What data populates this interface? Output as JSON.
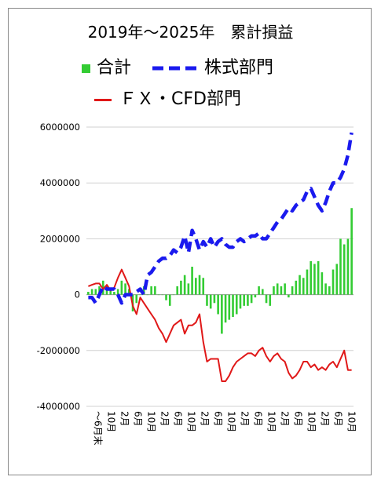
{
  "chart_data": {
    "type": "bar",
    "title": "2019年～2025年　累計損益",
    "ylim": [
      -4000000,
      6000000
    ],
    "yticks": [
      "6000000",
      "4000000",
      "2000000",
      "0",
      "-2000000",
      "-4000000"
    ],
    "ytick_values": [
      6000000,
      4000000,
      2000000,
      0,
      -2000000,
      -4000000
    ],
    "grid": "horizontal",
    "legend_position": "top",
    "x_tick_labels": [
      "～6月末",
      "10月",
      "2月",
      "6月",
      "10月",
      "2月",
      "6月",
      "10月",
      "2月",
      "6月",
      "10月",
      "2月",
      "6月",
      "10月",
      "2月",
      "6月",
      "10月",
      "2月",
      "6月",
      "10月"
    ],
    "series": [
      {
        "name": "合計",
        "kind": "bar",
        "color": "#33cc33",
        "values": [
          100000,
          200000,
          200000,
          300000,
          500000,
          300000,
          200000,
          100000,
          200000,
          500000,
          400000,
          200000,
          -600000,
          -300000,
          0,
          300000,
          0,
          300000,
          300000,
          0,
          0,
          -200000,
          -400000,
          0,
          300000,
          500000,
          700000,
          400000,
          1000000,
          600000,
          700000,
          600000,
          -400000,
          -500000,
          -300000,
          -700000,
          -1400000,
          -1000000,
          -900000,
          -800000,
          -700000,
          -500000,
          -400000,
          -400000,
          -300000,
          -100000,
          300000,
          200000,
          -300000,
          -400000,
          300000,
          400000,
          300000,
          400000,
          -100000,
          300000,
          500000,
          700000,
          600000,
          900000,
          1200000,
          1100000,
          1200000,
          800000,
          400000,
          300000,
          900000,
          1100000,
          2000000,
          1800000,
          2000000,
          3100000
        ]
      },
      {
        "name": "株式部門",
        "kind": "dashed-line",
        "color": "#1a1aee",
        "values": [
          -100000,
          -100000,
          -300000,
          0,
          300000,
          200000,
          200000,
          200000,
          0,
          -300000,
          0,
          0,
          0,
          100000,
          200000,
          0,
          700000,
          800000,
          1000000,
          1200000,
          1300000,
          1300000,
          1400000,
          1600000,
          1500000,
          1700000,
          2100000,
          1500000,
          2300000,
          2000000,
          1600000,
          1900000,
          1700000,
          2000000,
          1700000,
          1900000,
          2000000,
          1800000,
          1700000,
          1700000,
          1900000,
          2000000,
          1900000,
          2000000,
          2100000,
          2100000,
          2200000,
          2000000,
          2000000,
          2200000,
          2400000,
          2600000,
          2700000,
          2900000,
          3100000,
          3000000,
          3200000,
          3300000,
          3400000,
          3700000,
          3800000,
          3500000,
          3200000,
          3000000,
          3300000,
          3700000,
          4000000,
          4000000,
          4200000,
          4500000,
          5000000,
          5800000
        ]
      },
      {
        "name": "ＦＸ・CFD部門",
        "kind": "line",
        "color": "#e01818",
        "values": [
          300000,
          350000,
          400000,
          400000,
          200000,
          350000,
          150000,
          250000,
          600000,
          900000,
          600000,
          300000,
          -400000,
          -700000,
          -100000,
          -300000,
          -500000,
          -700000,
          -900000,
          -1200000,
          -1400000,
          -1700000,
          -1400000,
          -1100000,
          -1000000,
          -900000,
          -1400000,
          -1100000,
          -1100000,
          -1000000,
          -700000,
          -1700000,
          -2400000,
          -2300000,
          -2300000,
          -2300000,
          -3100000,
          -3100000,
          -2900000,
          -2600000,
          -2400000,
          -2300000,
          -2200000,
          -2100000,
          -2100000,
          -2200000,
          -2000000,
          -1900000,
          -2200000,
          -2400000,
          -2200000,
          -2100000,
          -2300000,
          -2400000,
          -2800000,
          -3000000,
          -2900000,
          -2700000,
          -2400000,
          -2400000,
          -2600000,
          -2500000,
          -2700000,
          -2600000,
          -2700000,
          -2500000,
          -2400000,
          -2600000,
          -2300000,
          -2000000,
          -2700000,
          -2700000
        ]
      }
    ]
  }
}
